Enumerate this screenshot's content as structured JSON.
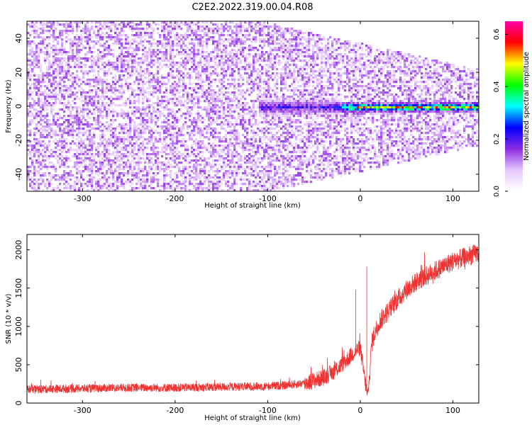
{
  "figure": {
    "title": "C2E2.2022.319.00.04.R08"
  },
  "chart_data": [
    {
      "type": "heatmap",
      "title": "",
      "xlabel": "Height of straight line (km)",
      "ylabel": "Frequency (Hz)",
      "xlim": [
        -360,
        128
      ],
      "ylim": [
        -50,
        50
      ],
      "x_ticks": [
        -300,
        -200,
        -100,
        0,
        100
      ],
      "y_ticks": [
        -40,
        -20,
        0,
        20,
        40
      ],
      "colorbar": {
        "label": "Normalized spectral amplitude",
        "range": [
          0,
          0.65
        ],
        "ticks": [
          0.0,
          0.2,
          0.4,
          0.6
        ],
        "colormap": [
          "#ffffff",
          "#e6c8ff",
          "#8a2be2",
          "#0000ff",
          "#00ffff",
          "#00ff00",
          "#ffff00",
          "#ff0000",
          "#ff00aa"
        ]
      },
      "features": {
        "noise_amplitude": 0.1,
        "noise_band_edges_start_km": -120,
        "carrier_start_km": -110,
        "carrier_frequency_hz": 0,
        "carrier_peak_amplitude": 0.5
      }
    },
    {
      "type": "line",
      "title": "",
      "xlabel": "Height of straight line (km)",
      "ylabel": "SNR (10 * v/v)",
      "xlim": [
        -360,
        128
      ],
      "ylim": [
        0,
        2200
      ],
      "x_ticks": [
        -300,
        -200,
        -100,
        0,
        100
      ],
      "y_ticks": [
        0,
        500,
        1000,
        1500,
        2000
      ],
      "series": [
        {
          "color": "#ee3333",
          "x": [
            -360,
            -300,
            -250,
            -200,
            -150,
            -100,
            -80,
            -60,
            -40,
            -30,
            -20,
            -15,
            -10,
            -5,
            0,
            5,
            8,
            10,
            12,
            15,
            20,
            30,
            40,
            50,
            60,
            80,
            100,
            128
          ],
          "values": [
            180,
            190,
            200,
            200,
            210,
            220,
            230,
            260,
            330,
            400,
            500,
            560,
            620,
            680,
            720,
            300,
            80,
            350,
            750,
            900,
            1050,
            1200,
            1350,
            1480,
            1580,
            1720,
            1850,
            1960
          ]
        }
      ],
      "annotations": [
        {
          "x": -5,
          "y": 1480,
          "label": ""
        },
        {
          "x": 7,
          "y": 1780,
          "label": ""
        }
      ]
    }
  ]
}
